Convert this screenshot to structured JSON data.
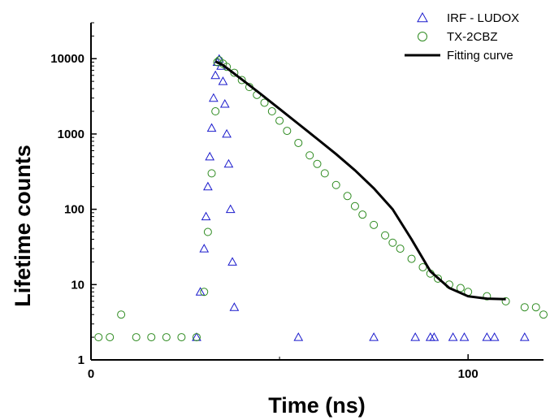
{
  "chart_data": {
    "type": "scatter",
    "xlabel": "Time (ns)",
    "ylabel": "Lifetime counts",
    "xlim": [
      0,
      120
    ],
    "ylim": [
      1,
      30000
    ],
    "yscale": "log",
    "x_ticks": [
      0,
      100
    ],
    "x_tick_labels": [
      "0",
      "100"
    ],
    "y_ticks": [
      1,
      10,
      100,
      1000,
      10000
    ],
    "y_tick_labels": [
      "1",
      "10",
      "100",
      "1000",
      "10000"
    ],
    "legend_position": "top-right",
    "series": [
      {
        "name": "IRF - LUDOX",
        "marker": "triangle",
        "color": "#1a1acc",
        "x": [
          28,
          29,
          30,
          30.5,
          31,
          31.5,
          32,
          32.5,
          33,
          33.5,
          34,
          34.5,
          35,
          35.5,
          36,
          36.5,
          37,
          37.5,
          38,
          55,
          75,
          86,
          90,
          91,
          96,
          99,
          105,
          107,
          115
        ],
        "y": [
          2,
          8,
          30,
          80,
          200,
          500,
          1200,
          3000,
          6000,
          9000,
          9900,
          8000,
          5000,
          2500,
          1000,
          400,
          100,
          20,
          5,
          2,
          2,
          2,
          2,
          2,
          2,
          2,
          2,
          2,
          2
        ]
      },
      {
        "name": "TX-2CBZ",
        "marker": "circle",
        "color": "#2e8b20",
        "x": [
          2,
          5,
          8,
          12,
          16,
          20,
          24,
          28,
          30,
          31,
          32,
          33,
          33.5,
          34,
          35,
          36,
          38,
          40,
          42,
          44,
          46,
          48,
          50,
          52,
          55,
          58,
          60,
          62,
          65,
          68,
          70,
          72,
          75,
          78,
          80,
          82,
          85,
          88,
          90,
          92,
          95,
          98,
          100,
          105,
          110,
          115,
          118,
          120
        ],
        "y": [
          2,
          2,
          4,
          2,
          2,
          2,
          2,
          2,
          8,
          50,
          300,
          2000,
          9000,
          9500,
          8600,
          7800,
          6500,
          5200,
          4200,
          3300,
          2600,
          2000,
          1500,
          1100,
          760,
          520,
          400,
          300,
          210,
          150,
          110,
          85,
          62,
          45,
          36,
          30,
          22,
          17,
          14,
          12,
          10,
          9,
          8,
          7,
          6,
          5,
          5,
          4
        ]
      },
      {
        "name": "Fitting curve",
        "marker": "line",
        "color": "#000000",
        "x": [
          33,
          35,
          40,
          45,
          50,
          55,
          60,
          65,
          70,
          75,
          80,
          85,
          90,
          95,
          100,
          105,
          110
        ],
        "y": [
          9200,
          8200,
          5300,
          3400,
          2150,
          1360,
          860,
          540,
          330,
          190,
          100,
          40,
          15,
          9,
          7,
          6.5,
          6.4
        ]
      }
    ]
  }
}
